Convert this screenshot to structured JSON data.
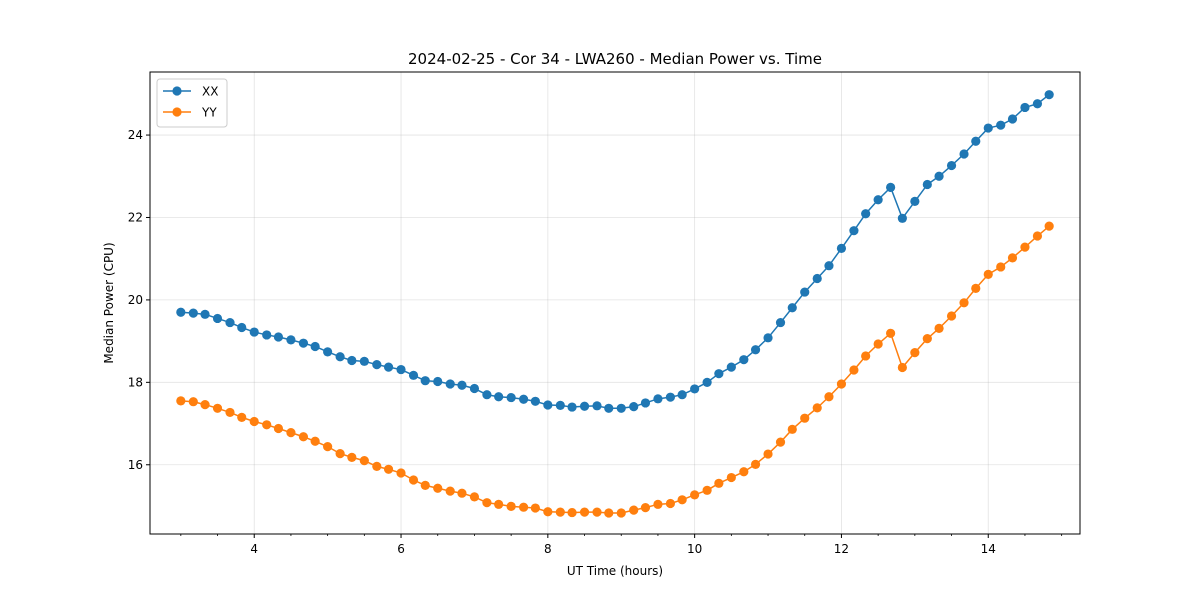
{
  "chart_data": {
    "type": "line",
    "title": "2024-02-25 - Cor 34 - LWA260 - Median Power vs. Time",
    "xlabel": "UT Time (hours)",
    "ylabel": "Median Power (CPU)",
    "xlim": [
      2.58,
      15.25
    ],
    "ylim": [
      14.32,
      25.53
    ],
    "xticks": [
      4,
      6,
      8,
      10,
      12,
      14
    ],
    "xtick_labels": [
      "4",
      "6",
      "8",
      "10",
      "12",
      "14"
    ],
    "xminor_step": 0.5,
    "yticks": [
      16,
      18,
      20,
      22,
      24
    ],
    "ytick_labels": [
      "16",
      "18",
      "20",
      "22",
      "24"
    ],
    "grid": true,
    "legend_position": "upper-left",
    "x": [
      3.0,
      3.17,
      3.33,
      3.5,
      3.67,
      3.83,
      4.0,
      4.17,
      4.33,
      4.5,
      4.67,
      4.83,
      5.0,
      5.17,
      5.33,
      5.5,
      5.67,
      5.83,
      6.0,
      6.17,
      6.33,
      6.5,
      6.67,
      6.83,
      7.0,
      7.17,
      7.33,
      7.5,
      7.67,
      7.83,
      8.0,
      8.17,
      8.33,
      8.5,
      8.67,
      8.83,
      9.0,
      9.17,
      9.33,
      9.5,
      9.67,
      9.83,
      10.0,
      10.17,
      10.33,
      10.5,
      10.67,
      10.83,
      11.0,
      11.17,
      11.33,
      11.5,
      11.67,
      11.83,
      12.0,
      12.17,
      12.33,
      12.5,
      12.67,
      12.83,
      13.0,
      13.17,
      13.33,
      13.5,
      13.67,
      13.83,
      14.0,
      14.17,
      14.33,
      14.5,
      14.67,
      14.83
    ],
    "series": [
      {
        "name": "XX",
        "color": "#1f77b4",
        "values": [
          19.7,
          19.68,
          19.65,
          19.55,
          19.45,
          19.33,
          19.22,
          19.15,
          19.1,
          19.03,
          18.95,
          18.87,
          18.74,
          18.62,
          18.53,
          18.51,
          18.43,
          18.37,
          18.31,
          18.17,
          18.04,
          18.02,
          17.96,
          17.93,
          17.85,
          17.7,
          17.65,
          17.63,
          17.59,
          17.54,
          17.45,
          17.44,
          17.4,
          17.42,
          17.43,
          17.37,
          17.37,
          17.41,
          17.5,
          17.6,
          17.64,
          17.7,
          17.84,
          18.0,
          18.21,
          18.37,
          18.55,
          18.79,
          19.08,
          19.45,
          19.81,
          20.19,
          20.52,
          20.83,
          21.25,
          21.68,
          22.09,
          22.43,
          22.73,
          21.98,
          22.39,
          22.8,
          23.0,
          23.26,
          23.54,
          23.85,
          24.17,
          24.24,
          24.39,
          24.67,
          24.76,
          24.98
        ]
      },
      {
        "name": "YY",
        "color": "#ff7f0e",
        "values": [
          17.55,
          17.53,
          17.46,
          17.37,
          17.27,
          17.15,
          17.05,
          16.97,
          16.88,
          16.78,
          16.68,
          16.57,
          16.44,
          16.27,
          16.18,
          16.1,
          15.96,
          15.89,
          15.8,
          15.63,
          15.5,
          15.43,
          15.36,
          15.31,
          15.22,
          15.08,
          15.04,
          14.99,
          14.97,
          14.95,
          14.86,
          14.85,
          14.84,
          14.85,
          14.85,
          14.83,
          14.83,
          14.9,
          14.96,
          15.04,
          15.06,
          15.15,
          15.27,
          15.38,
          15.55,
          15.69,
          15.83,
          16.01,
          16.26,
          16.55,
          16.86,
          17.13,
          17.38,
          17.65,
          17.96,
          18.3,
          18.64,
          18.93,
          19.19,
          18.36,
          18.72,
          19.06,
          19.31,
          19.61,
          19.93,
          20.28,
          20.62,
          20.8,
          21.02,
          21.28,
          21.55,
          21.79
        ]
      }
    ]
  }
}
